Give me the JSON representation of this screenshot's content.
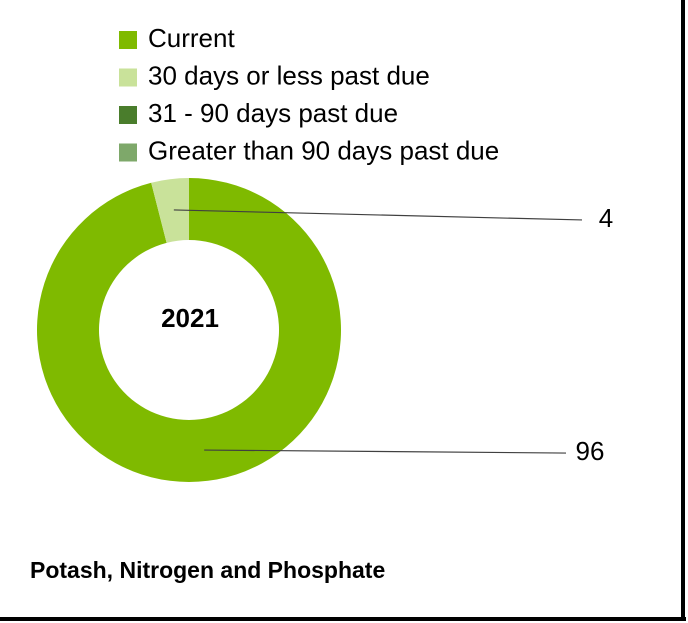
{
  "chart_data": {
    "type": "donut",
    "center_label": "2021",
    "footnote": "Potash, Nitrogen and Phosphate",
    "categories": [
      "Current",
      "30 days or less past due",
      "31 - 90 days past due",
      "Greater than 90 days past due"
    ],
    "values": [
      96,
      4,
      0,
      0
    ],
    "colors": [
      "#7fba00",
      "#c9e29a",
      "#4a7d2c",
      "#7ea86a"
    ],
    "legend": "top"
  }
}
